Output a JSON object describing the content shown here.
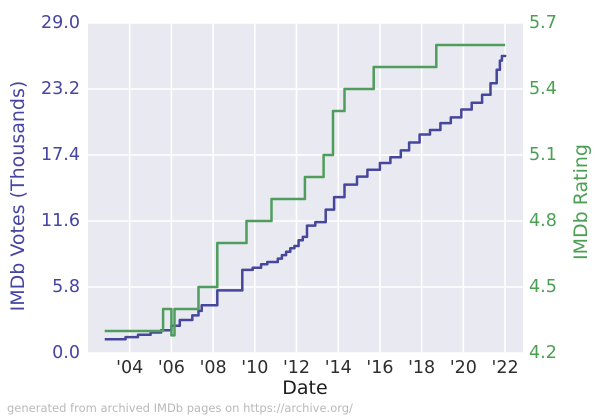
{
  "figure": {
    "caption": "generated from archived IMDb pages on https://archive.org/",
    "caption_color": "#b9b9b9",
    "background": "#ffffff"
  },
  "chart_data": {
    "type": "line",
    "title": "",
    "legend": "none",
    "grid": true,
    "grid_color": "#ffffff",
    "plot_bg": "#e9e9f1",
    "x_axis": {
      "label": "Date",
      "label_color": "#1d1d1d",
      "tick_color": "#2e2e2e",
      "range": [
        2002.0,
        2022.86
      ],
      "tick_values": [
        2004,
        2006,
        2008,
        2010,
        2012,
        2014,
        2016,
        2018,
        2020,
        2022
      ],
      "tick_labels": [
        "'04",
        "'06",
        "'08",
        "'10",
        "'12",
        "'14",
        "'16",
        "'18",
        "'20",
        "'22"
      ]
    },
    "y_left": {
      "label": "IMDb Votes (Thousands)",
      "color": "#4545a3",
      "range": [
        0.0,
        29.0
      ],
      "tick_values": [
        0.0,
        5.8,
        11.6,
        17.4,
        23.2,
        29.0
      ],
      "tick_labels": [
        "0.0",
        "5.8",
        "11.6",
        "17.4",
        "23.2",
        "29.0"
      ]
    },
    "y_right": {
      "label": "IMDb Rating",
      "color": "#4a9f52",
      "range": [
        4.2,
        5.7
      ],
      "tick_values": [
        4.2,
        4.5,
        4.8,
        5.1,
        5.4,
        5.7
      ],
      "tick_labels": [
        "4.2",
        "4.5",
        "4.8",
        "5.1",
        "5.4",
        "5.7"
      ]
    },
    "series": [
      {
        "id": "votes-line",
        "name": "IMDb Votes (Thousands)",
        "axis": "left",
        "color": "#46469b",
        "style": "step-after",
        "points": [
          [
            2002.8,
            1.2
          ],
          [
            2003.8,
            1.4
          ],
          [
            2004.4,
            1.6
          ],
          [
            2005.0,
            1.8
          ],
          [
            2005.5,
            2.0
          ],
          [
            2006.0,
            2.4
          ],
          [
            2006.4,
            2.9
          ],
          [
            2007.0,
            3.3
          ],
          [
            2007.3,
            3.7
          ],
          [
            2007.45,
            4.2
          ],
          [
            2008.2,
            5.5
          ],
          [
            2009.4,
            7.3
          ],
          [
            2009.9,
            7.5
          ],
          [
            2010.3,
            7.8
          ],
          [
            2010.6,
            8.0
          ],
          [
            2011.1,
            8.3
          ],
          [
            2011.3,
            8.6
          ],
          [
            2011.5,
            8.9
          ],
          [
            2011.7,
            9.2
          ],
          [
            2011.9,
            9.4
          ],
          [
            2012.1,
            9.9
          ],
          [
            2012.3,
            10.2
          ],
          [
            2012.5,
            11.2
          ],
          [
            2012.9,
            11.5
          ],
          [
            2013.4,
            12.6
          ],
          [
            2013.8,
            13.7
          ],
          [
            2014.3,
            14.8
          ],
          [
            2014.9,
            15.5
          ],
          [
            2015.4,
            16.1
          ],
          [
            2016.0,
            16.7
          ],
          [
            2016.5,
            17.2
          ],
          [
            2017.0,
            17.8
          ],
          [
            2017.4,
            18.5
          ],
          [
            2017.9,
            19.2
          ],
          [
            2018.4,
            19.6
          ],
          [
            2018.9,
            20.2
          ],
          [
            2019.4,
            20.7
          ],
          [
            2019.9,
            21.4
          ],
          [
            2020.4,
            22.0
          ],
          [
            2020.9,
            22.7
          ],
          [
            2021.3,
            23.7
          ],
          [
            2021.6,
            24.9
          ],
          [
            2021.75,
            25.7
          ],
          [
            2021.85,
            26.1
          ],
          [
            2022.0,
            26.2
          ]
        ]
      },
      {
        "id": "rating-line",
        "name": "IMDb Rating",
        "axis": "right",
        "color": "#4e9d5c",
        "style": "step-after",
        "points": [
          [
            2002.8,
            4.3
          ],
          [
            2005.6,
            4.4
          ],
          [
            2006.0,
            4.28
          ],
          [
            2006.15,
            4.4
          ],
          [
            2007.3,
            4.5
          ],
          [
            2008.2,
            4.7
          ],
          [
            2009.6,
            4.8
          ],
          [
            2010.8,
            4.9
          ],
          [
            2012.4,
            5.0
          ],
          [
            2013.3,
            5.1
          ],
          [
            2013.75,
            5.3
          ],
          [
            2014.3,
            5.4
          ],
          [
            2015.7,
            5.5
          ],
          [
            2018.7,
            5.6
          ],
          [
            2022.0,
            5.6
          ]
        ]
      }
    ]
  }
}
